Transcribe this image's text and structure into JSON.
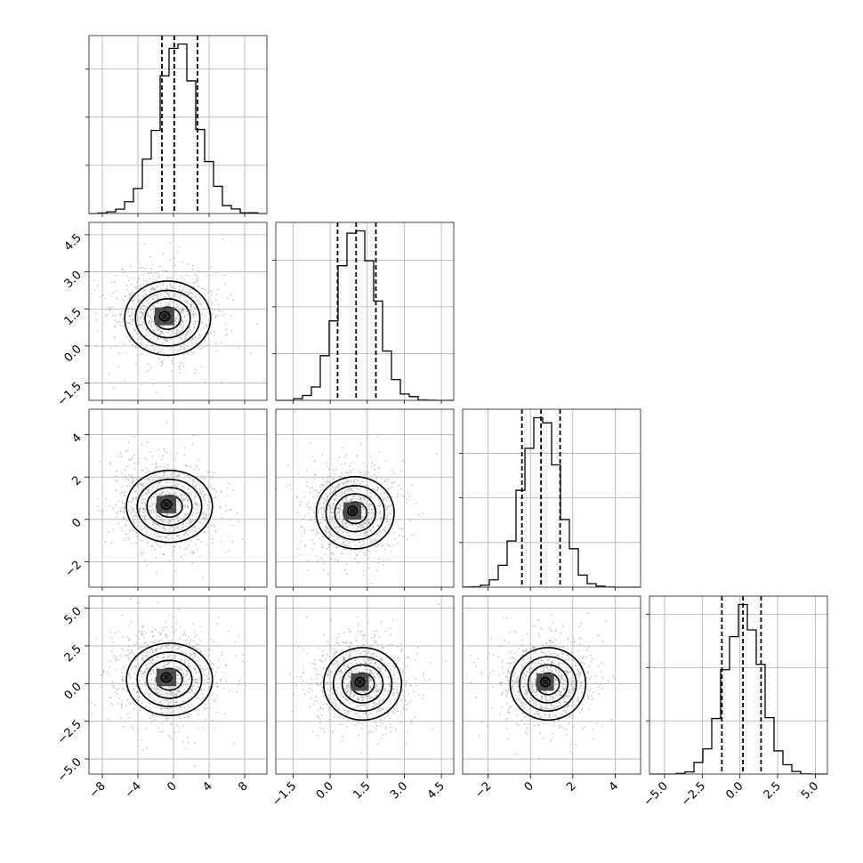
{
  "chart_data": {
    "type": "corner",
    "grid_on": true,
    "colors": {
      "line": "#000000",
      "grid": "#b0b0b0",
      "points": "#9a9a9a",
      "fill_dark": "#1a1a1a",
      "fill_light": "#e6e6e6"
    },
    "parameters": [
      {
        "range": [
          -9.5,
          10.5
        ],
        "ticks": [
          -8,
          -4,
          0,
          4,
          8
        ],
        "tick_labels": [
          "−8",
          "−4",
          "0",
          "4",
          "8"
        ],
        "mean": 0.5,
        "sd": 2.3,
        "quantiles": [
          -1.3,
          0.1,
          2.7
        ]
      },
      {
        "range": [
          -2.2,
          5.0
        ],
        "ticks": [
          -1.5,
          0.0,
          1.5,
          3.0,
          4.5
        ],
        "tick_labels": [
          "−1.5",
          "0.0",
          "1.5",
          "3.0",
          "4.5"
        ],
        "mean": 1.1,
        "sd": 0.75,
        "quantiles": [
          0.3,
          1.05,
          1.85
        ]
      },
      {
        "range": [
          -3.2,
          5.2
        ],
        "ticks": [
          -2,
          0,
          2,
          4
        ],
        "tick_labels": [
          "−2",
          "0",
          "2",
          "4"
        ],
        "mean": 0.5,
        "sd": 0.85,
        "quantiles": [
          -0.4,
          0.5,
          1.4
        ]
      },
      {
        "range": [
          -6.0,
          5.8
        ],
        "ticks": [
          -5.0,
          -2.5,
          0.0,
          2.5,
          5.0
        ],
        "tick_labels": [
          "−5.0",
          "−2.5",
          "0.0",
          "2.5",
          "5.0"
        ],
        "mean": 0.2,
        "sd": 1.2,
        "quantiles": [
          -1.2,
          0.2,
          1.4
        ]
      }
    ],
    "pairs": [
      {
        "x": 0,
        "y": 1,
        "mode": [
          -1.0,
          1.2
        ]
      },
      {
        "x": 0,
        "y": 2,
        "mode": [
          -0.8,
          0.7
        ]
      },
      {
        "x": 0,
        "y": 3,
        "mode": [
          -0.8,
          0.4
        ]
      },
      {
        "x": 1,
        "y": 2,
        "mode": [
          0.9,
          0.4
        ]
      },
      {
        "x": 1,
        "y": 3,
        "mode": [
          1.2,
          0.1
        ]
      },
      {
        "x": 2,
        "y": 3,
        "mode": [
          0.7,
          0.1
        ]
      }
    ]
  }
}
